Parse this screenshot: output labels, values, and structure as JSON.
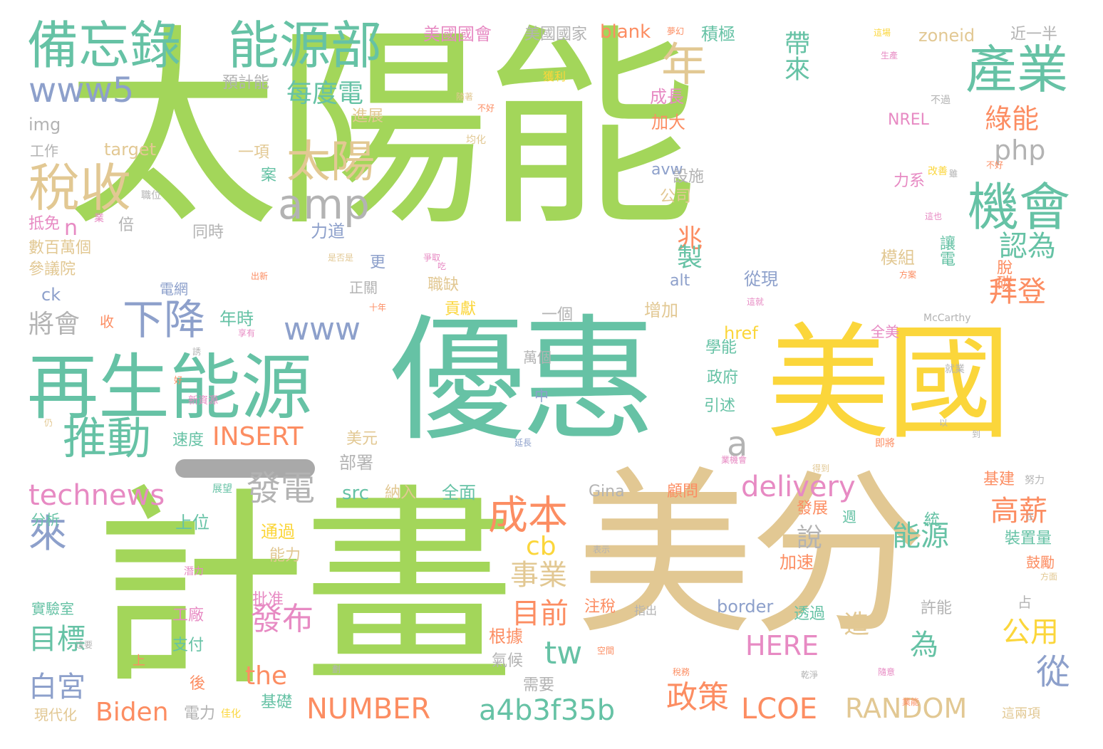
{
  "palette": {
    "green": "#a3d65a",
    "teal": "#66c2a5",
    "yellow": "#fbd63b",
    "tan": "#e2c893",
    "orange": "#fc8d62",
    "blue": "#8da0cb",
    "pink": "#e78ac3",
    "gray": "#b3b3b3"
  },
  "words": [
    "太陽能",
    "優惠",
    "美國",
    "計畫",
    "美分",
    "再生能源",
    "備忘錄",
    "能源部",
    "產業",
    "稅收",
    "太陽",
    "年",
    "機會",
    "amp",
    "www5",
    "推動",
    "下降",
    "來",
    "www",
    "technews",
    "發電",
    "成本",
    "delivery",
    "a",
    "php",
    "每度電",
    "綠能",
    "帶來",
    "兆",
    "製",
    "認為",
    "拜登",
    "高薪",
    "能源",
    "目前",
    "事業",
    "cb",
    "tw",
    "從",
    "為",
    "公用",
    "造",
    "說",
    "發布",
    "政策",
    "目標",
    "白宮",
    "將會",
    "NUMBER",
    "Biden",
    "a4b3f35b",
    "LCOE",
    "RANDOM",
    "the",
    "HERE",
    "INSERT",
    "n",
    "美國國會",
    "美國國家",
    "blank",
    "積極",
    "zoneid",
    "近一半",
    "預計能",
    "進展",
    "img",
    "工作",
    "target",
    "一項",
    "案",
    "avw",
    "加大",
    "成長",
    "NREL",
    "不過",
    "力系",
    "抵免",
    "倍",
    "同時",
    "力道",
    "數百萬個",
    "參議院",
    "ck",
    "電網",
    "收",
    "年時",
    "更",
    "正關",
    "職缺",
    "貢獻",
    "alt",
    "增加",
    "從現",
    "模組",
    "讓電",
    "脫碳",
    "一個",
    "萬個",
    "中",
    "學能",
    "政府",
    "引述",
    "href",
    "全美",
    "McCarthy",
    "就業",
    "上位",
    "分析",
    "通過",
    "能力",
    "src",
    "納入",
    "全面",
    "Gina",
    "顧問",
    "基建",
    "部署",
    "美元",
    "速度",
    "發展",
    "統",
    "週",
    "加速",
    "實驗室",
    "工廠",
    "批准",
    "注稅",
    "指出",
    "border",
    "透過",
    "許能",
    "占",
    "裝置量",
    "鼓勵",
    "支付",
    "上",
    "根據",
    "氣候",
    "需要",
    "後",
    "電力",
    "基礎",
    "現代化",
    "這兩項",
    "設施",
    "公司",
    "職位",
    "業",
    "隨著",
    "均化",
    "不好",
    "獲利",
    "生產",
    "這場",
    "夢幻",
    "改善",
    "這也",
    "方案",
    "這就",
    "十年",
    "享有",
    "出新",
    "是否是",
    "吃",
    "展望",
    "業機會",
    "得到",
    "努力",
    "方面",
    "正",
    "即將",
    "延長",
    "潛力",
    "表示",
    "空間",
    "隨意",
    "稅務",
    "乾淨",
    "這要",
    "仍",
    "新資源",
    "好",
    "誘",
    "佳化",
    "劃",
    "雖",
    "以",
    "到",
    "不好",
    "業能",
    "爭取",
    "壓",
    "乎",
    "全業"
  ],
  "large_glyph_note": ""
}
